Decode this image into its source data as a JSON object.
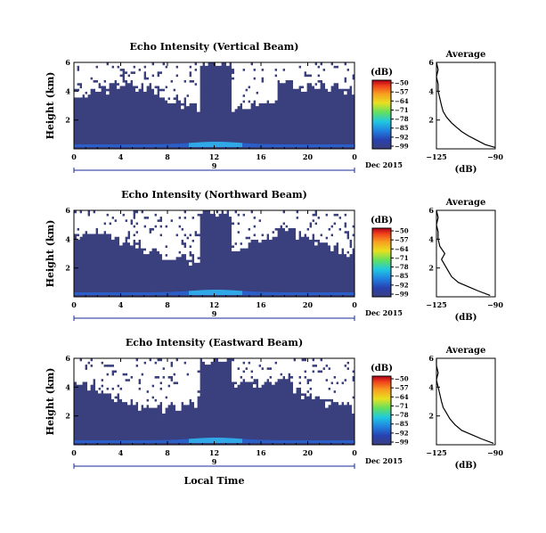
{
  "chart_data": [
    {
      "type": "heatmap",
      "title": "Echo Intensity (Vertical Beam)",
      "ylabel": "Height (km)",
      "xticks": [
        "0",
        "4",
        "8",
        "12",
        "16",
        "20",
        "0"
      ],
      "xlim": [
        0,
        24
      ],
      "ylim": [
        0,
        6
      ],
      "yticks": [
        "2",
        "4",
        "6"
      ],
      "date_marker": "9",
      "date_label": "Dec 2015",
      "colorbar": {
        "unit": "(dB)",
        "ticks": [
          "-50",
          "-57",
          "-64",
          "-71",
          "-78",
          "-85",
          "-92",
          "-99"
        ]
      },
      "profile": {
        "title": "Average",
        "xlabel": "(dB)",
        "xticks": [
          "-125",
          "-90"
        ],
        "yticks": [
          "2",
          "4",
          "6"
        ],
        "height_km": [
          0.1,
          0.3,
          0.6,
          0.9,
          1.2,
          1.5,
          1.8,
          2.2,
          2.6,
          3.0,
          3.5,
          4.0,
          4.5,
          5.0,
          5.5,
          6.0
        ],
        "echo_db": [
          -90,
          -96,
          -101,
          -106,
          -110,
          -113,
          -116,
          -119,
          -121,
          -122,
          -123,
          -124,
          -124,
          -125,
          -124,
          -125
        ]
      }
    },
    {
      "type": "heatmap",
      "title": "Echo Intensity (Northward Beam)",
      "ylabel": "Height (km)",
      "xticks": [
        "0",
        "4",
        "8",
        "12",
        "16",
        "20",
        "0"
      ],
      "xlim": [
        0,
        24
      ],
      "ylim": [
        0,
        6
      ],
      "yticks": [
        "2",
        "4",
        "6"
      ],
      "date_marker": "9",
      "date_label": "Dec 2015",
      "colorbar": {
        "unit": "(dB)",
        "ticks": [
          "-50",
          "-57",
          "-64",
          "-71",
          "-78",
          "-85",
          "-92",
          "-99"
        ]
      },
      "profile": {
        "title": "Average",
        "xlabel": "(dB)",
        "xticks": [
          "-125",
          "-90"
        ],
        "yticks": [
          "2",
          "4",
          "6"
        ],
        "height_km": [
          0.1,
          0.4,
          0.7,
          1.0,
          1.4,
          1.8,
          2.2,
          2.6,
          3.0,
          3.5,
          4.0,
          4.5,
          5.0,
          5.5,
          6.0
        ],
        "echo_db": [
          -93,
          -100,
          -106,
          -112,
          -116,
          -118,
          -120,
          -122,
          -120,
          -123,
          -124,
          -124,
          -125,
          -124,
          -125
        ]
      }
    },
    {
      "type": "heatmap",
      "title": "Echo Intensity (Eastward Beam)",
      "ylabel": "Height (km)",
      "xlabel": "Local Time",
      "xticks": [
        "0",
        "4",
        "8",
        "12",
        "16",
        "20",
        "0"
      ],
      "xlim": [
        0,
        24
      ],
      "ylim": [
        0,
        6
      ],
      "yticks": [
        "2",
        "4",
        "6"
      ],
      "date_marker": "9",
      "date_label": "Dec 2015",
      "colorbar": {
        "unit": "(dB)",
        "ticks": [
          "-50",
          "-57",
          "-64",
          "-71",
          "-78",
          "-85",
          "-92",
          "-99"
        ]
      },
      "profile": {
        "title": "Average",
        "xlabel": "(dB)",
        "xticks": [
          "-125",
          "-90"
        ],
        "yticks": [
          "2",
          "4",
          "6"
        ],
        "height_km": [
          0.1,
          0.4,
          0.7,
          1.0,
          1.4,
          1.8,
          2.2,
          2.6,
          3.0,
          3.5,
          4.0,
          4.5,
          5.0,
          5.5,
          6.0
        ],
        "echo_db": [
          -91,
          -98,
          -104,
          -110,
          -114,
          -117,
          -119,
          -121,
          -122,
          -123,
          -124,
          -125,
          -124,
          -125,
          -125
        ]
      }
    }
  ],
  "colors": {
    "background_echo": "#3a3f7d",
    "no_data": "#ffffff",
    "colorbar_stops": [
      "#b0001a",
      "#f0401a",
      "#f8a020",
      "#e8e020",
      "#60e060",
      "#20c8e0",
      "#2080e0",
      "#2840b0",
      "#3a3f7d"
    ]
  }
}
